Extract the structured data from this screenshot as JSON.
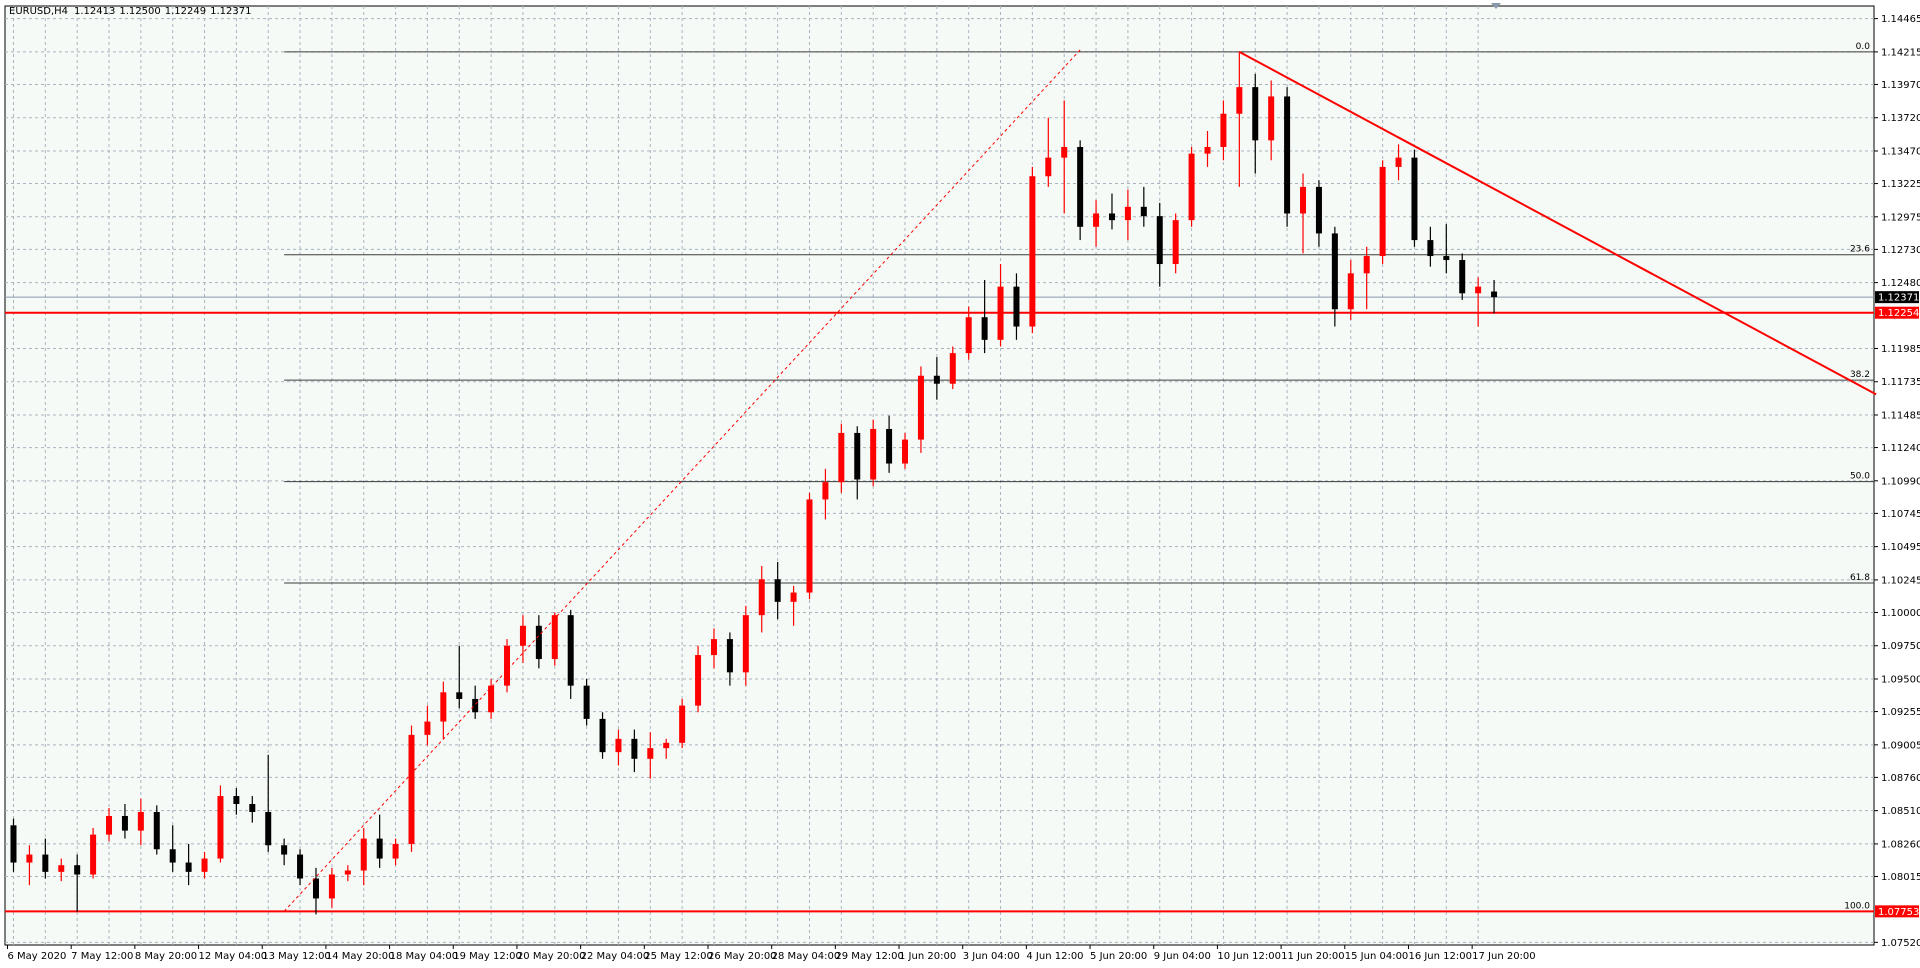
{
  "chart_data": {
    "type": "candlestick",
    "title": "EURUSD,H4",
    "last_bar_labels": [
      "1.12413",
      "1.12500",
      "1.12249",
      "1.12371"
    ],
    "up_color": "#ff0000",
    "down_color": "#000000",
    "grid": true,
    "categories": [
      "6 May 2020",
      null,
      null,
      null,
      "7 May 12:00",
      null,
      null,
      null,
      "8 May 20:00",
      null,
      null,
      null,
      "12 May 04:00",
      null,
      null,
      null,
      "13 May 12:00",
      null,
      null,
      null,
      "14 May 20:00",
      null,
      null,
      null,
      "18 May 04:00",
      null,
      null,
      null,
      "19 May 12:00",
      null,
      null,
      null,
      "20 May 20:00",
      null,
      null,
      null,
      "22 May 04:00",
      null,
      null,
      null,
      "25 May 12:00",
      null,
      null,
      null,
      "26 May 20:00",
      null,
      null,
      null,
      "28 May 04:00",
      null,
      null,
      null,
      "29 May 12:00",
      null,
      null,
      null,
      "1 Jun 20:00",
      null,
      null,
      null,
      "3 Jun 04:00",
      null,
      null,
      null,
      "4 Jun 12:00",
      null,
      null,
      null,
      "5 Jun 20:00",
      null,
      null,
      null,
      "9 Jun 04:00",
      null,
      null,
      null,
      "10 Jun 12:00",
      null,
      null,
      null,
      "11 Jun 20:00",
      null,
      null,
      null,
      "15 Jun 04:00",
      null,
      null,
      null,
      "16 Jun 12:00",
      null,
      null,
      null,
      "17 Jun 20:00",
      null
    ],
    "ohlc": [
      [
        1.084,
        1.0845,
        1.0805,
        1.0812
      ],
      [
        1.0812,
        1.0825,
        1.0795,
        1.0818
      ],
      [
        1.0818,
        1.083,
        1.08,
        1.0805
      ],
      [
        1.0805,
        1.0815,
        1.0798,
        1.081
      ],
      [
        1.081,
        1.0818,
        1.0775,
        1.0803
      ],
      [
        1.0803,
        1.0838,
        1.08,
        1.0833
      ],
      [
        1.0833,
        1.0853,
        1.0828,
        1.0847
      ],
      [
        1.0847,
        1.0856,
        1.083,
        1.0836
      ],
      [
        1.0836,
        1.086,
        1.0825,
        1.085
      ],
      [
        1.085,
        1.0855,
        1.0818,
        1.0822
      ],
      [
        1.0822,
        1.084,
        1.0805,
        1.0812
      ],
      [
        1.0812,
        1.0826,
        1.0795,
        1.0805
      ],
      [
        1.0805,
        1.082,
        1.08,
        1.0815
      ],
      [
        1.0815,
        1.087,
        1.0812,
        1.0862
      ],
      [
        1.0862,
        1.0868,
        1.0848,
        1.0856
      ],
      [
        1.0856,
        1.0862,
        1.0842,
        1.085
      ],
      [
        1.085,
        1.0893,
        1.082,
        1.0825
      ],
      [
        1.0825,
        1.083,
        1.081,
        1.0818
      ],
      [
        1.0818,
        1.0822,
        1.0795,
        1.08
      ],
      [
        1.08,
        1.0808,
        1.0773,
        1.0785
      ],
      [
        1.0785,
        1.0808,
        1.0778,
        1.0803
      ],
      [
        1.0803,
        1.081,
        1.0798,
        1.0806
      ],
      [
        1.0806,
        1.0838,
        1.0795,
        1.083
      ],
      [
        1.083,
        1.0848,
        1.0808,
        1.0815
      ],
      [
        1.0815,
        1.083,
        1.081,
        1.0826
      ],
      [
        1.0826,
        1.0915,
        1.082,
        1.0908
      ],
      [
        1.0908,
        1.093,
        1.09,
        1.0918
      ],
      [
        1.0918,
        1.0948,
        1.0905,
        1.094
      ],
      [
        1.094,
        1.0975,
        1.0928,
        1.0935
      ],
      [
        1.0935,
        1.0945,
        1.092,
        1.0925
      ],
      [
        1.0925,
        1.095,
        1.092,
        1.0945
      ],
      [
        1.0945,
        1.098,
        1.094,
        1.0975
      ],
      [
        1.0975,
        1.0998,
        1.0962,
        1.099
      ],
      [
        1.099,
        1.0998,
        1.0958,
        1.0965
      ],
      [
        1.0965,
        1.1,
        1.096,
        1.0998
      ],
      [
        1.0998,
        1.1002,
        1.0935,
        1.0945
      ],
      [
        1.0945,
        1.095,
        1.0915,
        1.092
      ],
      [
        1.092,
        1.0925,
        1.089,
        1.0895
      ],
      [
        1.0895,
        1.0912,
        1.0885,
        1.0905
      ],
      [
        1.0905,
        1.0912,
        1.088,
        1.089
      ],
      [
        1.089,
        1.091,
        1.0875,
        1.0898
      ],
      [
        1.0898,
        1.0905,
        1.089,
        1.0902
      ],
      [
        1.0902,
        1.0935,
        1.0898,
        1.093
      ],
      [
        1.093,
        1.0975,
        1.0925,
        1.0968
      ],
      [
        1.0968,
        1.0988,
        1.0958,
        1.098
      ],
      [
        1.098,
        1.0985,
        1.0945,
        1.0955
      ],
      [
        1.0955,
        1.1005,
        1.0945,
        1.0998
      ],
      [
        1.0998,
        1.1035,
        1.0985,
        1.1025
      ],
      [
        1.1025,
        1.1038,
        1.0995,
        1.1008
      ],
      [
        1.1008,
        1.102,
        1.099,
        1.1015
      ],
      [
        1.1015,
        1.109,
        1.101,
        1.1085
      ],
      [
        1.1085,
        1.1108,
        1.107,
        1.1098
      ],
      [
        1.1098,
        1.1142,
        1.109,
        1.1135
      ],
      [
        1.1135,
        1.114,
        1.1085,
        1.11
      ],
      [
        1.11,
        1.1145,
        1.1095,
        1.1138
      ],
      [
        1.1138,
        1.1148,
        1.1105,
        1.1112
      ],
      [
        1.1112,
        1.1135,
        1.1108,
        1.113
      ],
      [
        1.113,
        1.1185,
        1.112,
        1.1178
      ],
      [
        1.1178,
        1.1192,
        1.116,
        1.1172
      ],
      [
        1.1172,
        1.12,
        1.1168,
        1.1195
      ],
      [
        1.1195,
        1.123,
        1.119,
        1.1222
      ],
      [
        1.1222,
        1.125,
        1.1195,
        1.1205
      ],
      [
        1.1205,
        1.1262,
        1.12,
        1.1245
      ],
      [
        1.1245,
        1.1255,
        1.1205,
        1.1215
      ],
      [
        1.1215,
        1.1335,
        1.121,
        1.1328
      ],
      [
        1.1328,
        1.1372,
        1.132,
        1.1342
      ],
      [
        1.1342,
        1.1385,
        1.13,
        1.135
      ],
      [
        1.135,
        1.1355,
        1.128,
        1.129
      ],
      [
        1.129,
        1.131,
        1.1275,
        1.13
      ],
      [
        1.13,
        1.1315,
        1.1288,
        1.1295
      ],
      [
        1.1295,
        1.1318,
        1.128,
        1.1305
      ],
      [
        1.1305,
        1.132,
        1.129,
        1.1298
      ],
      [
        1.1298,
        1.1308,
        1.1245,
        1.1262
      ],
      [
        1.1262,
        1.13,
        1.1255,
        1.1295
      ],
      [
        1.1295,
        1.135,
        1.129,
        1.1345
      ],
      [
        1.1345,
        1.1362,
        1.1335,
        1.135
      ],
      [
        1.135,
        1.1385,
        1.134,
        1.1375
      ],
      [
        1.1375,
        1.1422,
        1.132,
        1.1395
      ],
      [
        1.1395,
        1.1405,
        1.133,
        1.1355
      ],
      [
        1.1355,
        1.14,
        1.134,
        1.1388
      ],
      [
        1.1388,
        1.1395,
        1.129,
        1.13
      ],
      [
        1.13,
        1.133,
        1.127,
        1.132
      ],
      [
        1.132,
        1.1325,
        1.1275,
        1.1285
      ],
      [
        1.1285,
        1.129,
        1.1215,
        1.1228
      ],
      [
        1.1228,
        1.1265,
        1.122,
        1.1255
      ],
      [
        1.1255,
        1.1275,
        1.1228,
        1.1268
      ],
      [
        1.1268,
        1.134,
        1.1262,
        1.1335
      ],
      [
        1.1335,
        1.1352,
        1.1325,
        1.1342
      ],
      [
        1.1342,
        1.1348,
        1.1275,
        1.128
      ],
      [
        1.128,
        1.129,
        1.126,
        1.1268
      ],
      [
        1.1268,
        1.1292,
        1.1255,
        1.1265
      ],
      [
        1.1265,
        1.127,
        1.1235,
        1.124
      ],
      [
        1.124,
        1.1252,
        1.1215,
        1.1245
      ],
      [
        1.12413,
        1.125,
        1.12249,
        1.12371
      ]
    ],
    "ylim": [
      1.075,
      1.1456
    ],
    "yticks": [
      1.14465,
      1.14215,
      {
        "value": 1.1397,
        "label": "1.13970"
      },
      {
        "value": 1.1372,
        "label": "1.13720"
      },
      {
        "value": 1.1347,
        "label": "1.13470"
      },
      1.13225,
      1.12975,
      {
        "value": 1.1273,
        "label": "1.12730"
      },
      {
        "value": 1.1248,
        "label": "1.12480"
      },
      1.11985,
      1.11735,
      1.11485,
      {
        "value": 1.1124,
        "label": "1.11240"
      },
      {
        "value": 1.1099,
        "label": "1.10990"
      },
      1.10745,
      1.10495,
      1.10245,
      {
        "value": 1.1,
        "label": "1.10000"
      },
      {
        "value": 1.0975,
        "label": "1.09750"
      },
      {
        "value": 1.095,
        "label": "1.09500"
      },
      1.09255,
      1.09005,
      {
        "value": 1.0876,
        "label": "1.08760"
      },
      {
        "value": 1.0851,
        "label": "1.08510"
      },
      {
        "value": 1.0826,
        "label": "1.08260"
      },
      1.08015,
      {
        "value": 1.0752,
        "label": "1.07520"
      }
    ],
    "fibo_from": 17,
    "fibo_levels": [
      {
        "label": "0.0",
        "price": 1.14215
      },
      {
        "label": "23.6",
        "price": 1.1269
      },
      {
        "label": "38.2",
        "price": 1.11747
      },
      {
        "label": "50.0",
        "price": 1.10984
      },
      {
        "label": "61.8",
        "price": 1.10222
      },
      {
        "label": "100.0",
        "price": 1.07753
      }
    ],
    "price_lines": [
      {
        "price": 1.12371,
        "color": "#8a98ad",
        "box": "#000000"
      },
      {
        "price": 1.12254,
        "color": "#ff0000",
        "box": "#ff0000"
      },
      {
        "price": 1.07753,
        "color": "#ff0000",
        "box": "#ff0000"
      }
    ],
    "trendlines": [
      {
        "from": [
          77,
          1.14215
        ],
        "to": [
          117,
          1.1164
        ],
        "color": "#ff0000",
        "dash": false
      },
      {
        "from": [
          17,
          1.07753
        ],
        "to": [
          67,
          1.1423
        ],
        "color": "#ff0000",
        "dash": true
      }
    ]
  }
}
